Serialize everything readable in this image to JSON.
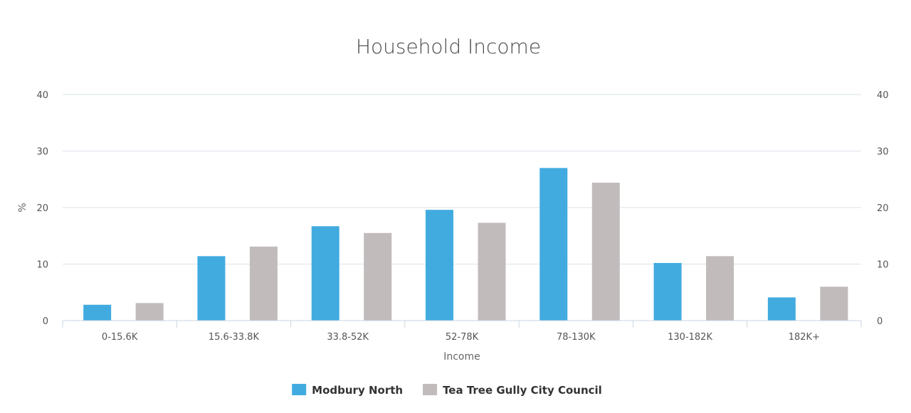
{
  "chart_data": {
    "type": "bar",
    "title": "Household Income",
    "xlabel": "Income",
    "ylabel": "%",
    "ylim": [
      0,
      40
    ],
    "yticks": [
      0,
      10,
      20,
      30,
      40
    ],
    "categories": [
      "0-15.6K",
      "15.6-33.8K",
      "33.8-52K",
      "52-78K",
      "78-130K",
      "130-182K",
      "182K+"
    ],
    "series": [
      {
        "name": "Modbury North",
        "color": "#41abe0",
        "values": [
          2.8,
          11.4,
          16.7,
          19.6,
          27.0,
          10.2,
          4.1
        ]
      },
      {
        "name": "Tea Tree Gully City Council",
        "color": "#c1bbbb",
        "values": [
          3.1,
          13.1,
          15.5,
          17.3,
          24.4,
          11.4,
          6.0
        ]
      }
    ],
    "grid": true,
    "legend": "bottom-center"
  }
}
